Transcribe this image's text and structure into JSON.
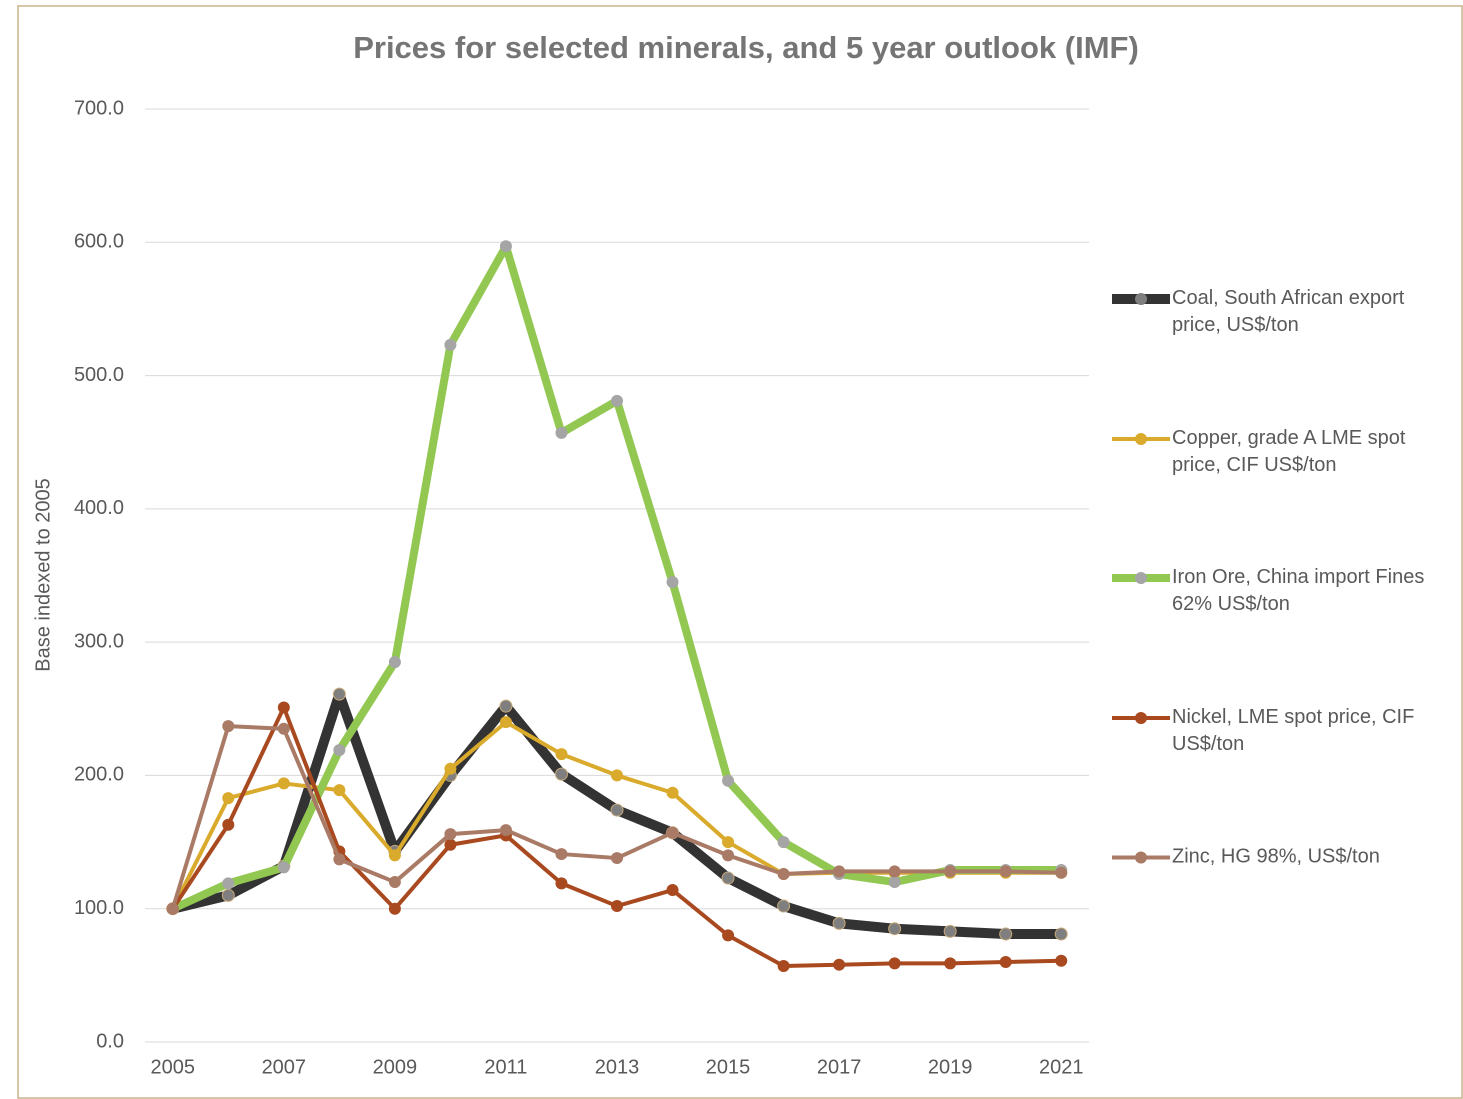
{
  "chart_data": {
    "type": "line",
    "title": "Prices for selected minerals,  and 5 year outlook (IMF)",
    "y_label": "Base indexed to 2005",
    "x": [
      2005,
      2006,
      2007,
      2008,
      2009,
      2010,
      2011,
      2012,
      2013,
      2014,
      2015,
      2016,
      2017,
      2018,
      2019,
      2020,
      2021
    ],
    "xlim": [
      2004.5,
      2021.5
    ],
    "xticks": [
      2005,
      2007,
      2009,
      2011,
      2013,
      2015,
      2017,
      2019,
      2021
    ],
    "ylim": [
      0,
      700
    ],
    "yticks": [
      {
        "value": 0,
        "label": "0.0"
      },
      {
        "value": 100,
        "label": "100.0"
      },
      {
        "value": 200,
        "label": "200.0"
      },
      {
        "value": 300,
        "label": "300.0"
      },
      {
        "value": 400,
        "label": "400.0"
      },
      {
        "value": 500,
        "label": "500.0"
      },
      {
        "value": 600,
        "label": "600.0"
      },
      {
        "value": 700,
        "label": "700.0"
      }
    ],
    "grid": true,
    "legend": "right",
    "series": [
      {
        "name": "Coal, South African export price, US$/ton",
        "color": "#333333",
        "marker_color": "#7f7f7f",
        "values": [
          100,
          110,
          132,
          261,
          143,
          200,
          252,
          201,
          174,
          157,
          123,
          102,
          89,
          85,
          83,
          81,
          81
        ]
      },
      {
        "name": "Copper, grade A LME spot price, CIF US$/ton",
        "color": "#d9aa2b",
        "marker_color": "#d9aa2b",
        "values": [
          100,
          183,
          194,
          189,
          140,
          205,
          240,
          216,
          200,
          187,
          150,
          126,
          127,
          127,
          127,
          127,
          127
        ]
      },
      {
        "name": "Iron Ore, China import Fines 62% US$/ton",
        "color": "#92c852",
        "marker_color": "#a5a5a5",
        "values": [
          100,
          119,
          131,
          219,
          285,
          523,
          597,
          457,
          481,
          345,
          196,
          150,
          126,
          120,
          129,
          129,
          129
        ]
      },
      {
        "name": "Nickel, LME spot price, CIF US$/ton",
        "color": "#a9491f",
        "marker_color": "#a9491f",
        "values": [
          100,
          163,
          251,
          143,
          100,
          148,
          155,
          119,
          102,
          114,
          80,
          57,
          58,
          59,
          59,
          60,
          61
        ]
      },
      {
        "name": "Zinc, HG 98%, US$/ton",
        "color": "#a97a65",
        "marker_color": "#a97a65",
        "values": [
          100,
          237,
          235,
          137,
          120,
          156,
          159,
          141,
          138,
          157,
          140,
          126,
          128,
          128,
          128,
          128,
          127
        ]
      }
    ]
  }
}
